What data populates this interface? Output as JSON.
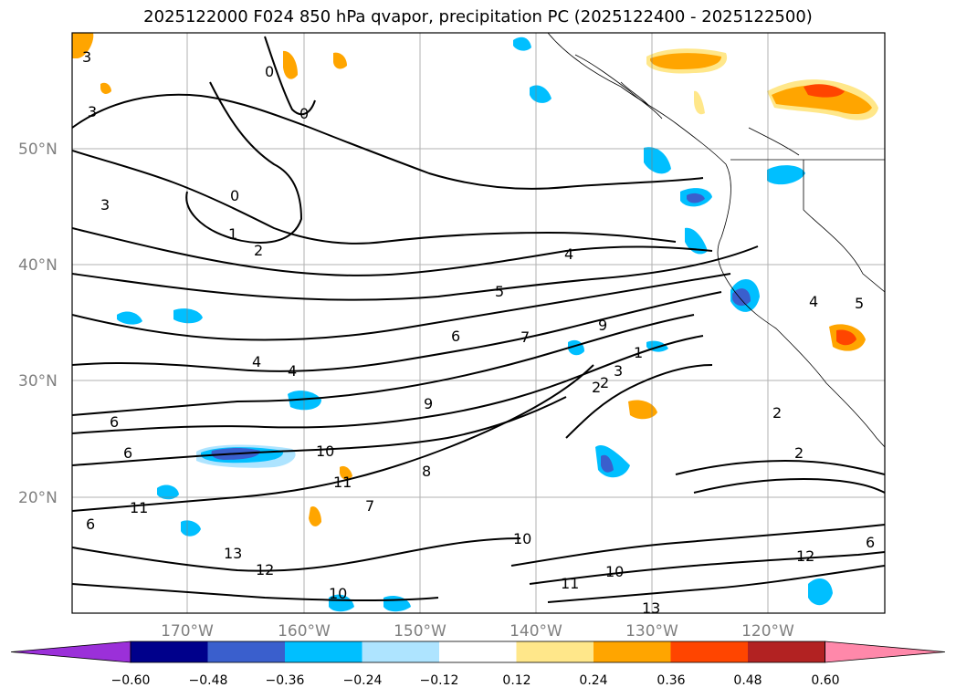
{
  "title": "2025122000 F024 850 hPa qvapor, precipitation PC (2025122400 - 2025122500)",
  "map": {
    "lat_labels": [
      "50°N",
      "40°N",
      "30°N",
      "20°N"
    ],
    "lon_labels": [
      "170°W",
      "160°W",
      "150°W",
      "140°W",
      "130°W",
      "120°W"
    ],
    "lat_range": [
      10,
      60
    ],
    "lon_range": [
      -180,
      -110
    ],
    "grid": true,
    "contour_labels": [
      "3",
      "0",
      "3",
      "0",
      "0",
      "3",
      "1",
      "2",
      "4",
      "5",
      "6",
      "7",
      "8",
      "9",
      "9",
      "10",
      "11",
      "13",
      "12",
      "10",
      "10",
      "11",
      "12",
      "13",
      "6",
      "6",
      "4",
      "4",
      "2",
      "3",
      "2",
      "2",
      "5",
      "4",
      "6",
      "7",
      "10",
      "11",
      "1",
      "2",
      "6"
    ]
  },
  "colorbar": {
    "ticks": [
      "−0.60",
      "−0.48",
      "−0.36",
      "−0.24",
      "−0.12",
      "0.12",
      "0.24",
      "0.36",
      "0.48",
      "0.60"
    ],
    "colors": [
      "#9b30d9",
      "#00008b",
      "#3a5fcd",
      "#00bfff",
      "#aee4ff",
      "#ffffff",
      "#ffe78a",
      "#ffa500",
      "#ff4500",
      "#b22222",
      "#ff88aa"
    ]
  }
}
